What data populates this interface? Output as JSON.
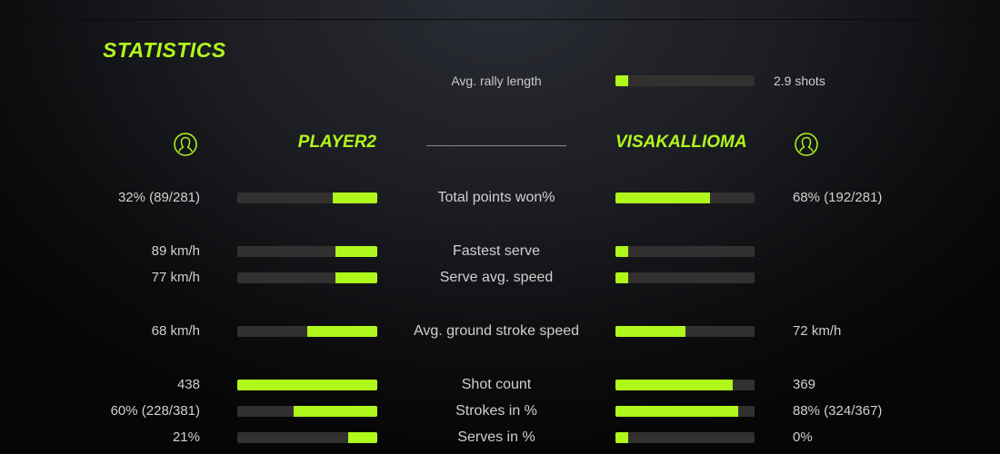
{
  "title": "STATISTICS",
  "colors": {
    "accent": "#b0f81c",
    "bar_track": "#333030"
  },
  "header": {
    "left_player": {
      "name": "PLAYER2",
      "icon": "user-circle-icon"
    },
    "right_player": {
      "name": "VISAKALLIOMA",
      "icon": "user-circle-icon"
    }
  },
  "rally": {
    "label": "Avg. rally length",
    "value": "2.9 shots",
    "right_fill": 0.09
  },
  "stats": [
    {
      "label": "Total points won%",
      "left": "32% (89/281)",
      "right": "68% (192/281)",
      "left_fill": 0.32,
      "right_fill": 0.68
    },
    {
      "label": "Fastest serve",
      "left": "89 km/h",
      "right": "",
      "left_fill": 0.3,
      "right_fill": 0.09
    },
    {
      "label": "Serve avg. speed",
      "left": "77 km/h",
      "right": "",
      "left_fill": 0.3,
      "right_fill": 0.09
    },
    {
      "label": "Avg. ground stroke speed",
      "left": "68 km/h",
      "right": "72 km/h",
      "left_fill": 0.5,
      "right_fill": 0.5
    },
    {
      "label": "Shot count",
      "left": "438",
      "right": "369",
      "left_fill": 1.0,
      "right_fill": 0.84
    },
    {
      "label": "Strokes in %",
      "left": "60% (228/381)",
      "right": "88% (324/367)",
      "left_fill": 0.6,
      "right_fill": 0.88
    },
    {
      "label": "Serves in %",
      "left": "21%",
      "right": "0%",
      "left_fill": 0.21,
      "right_fill": 0.09
    }
  ]
}
